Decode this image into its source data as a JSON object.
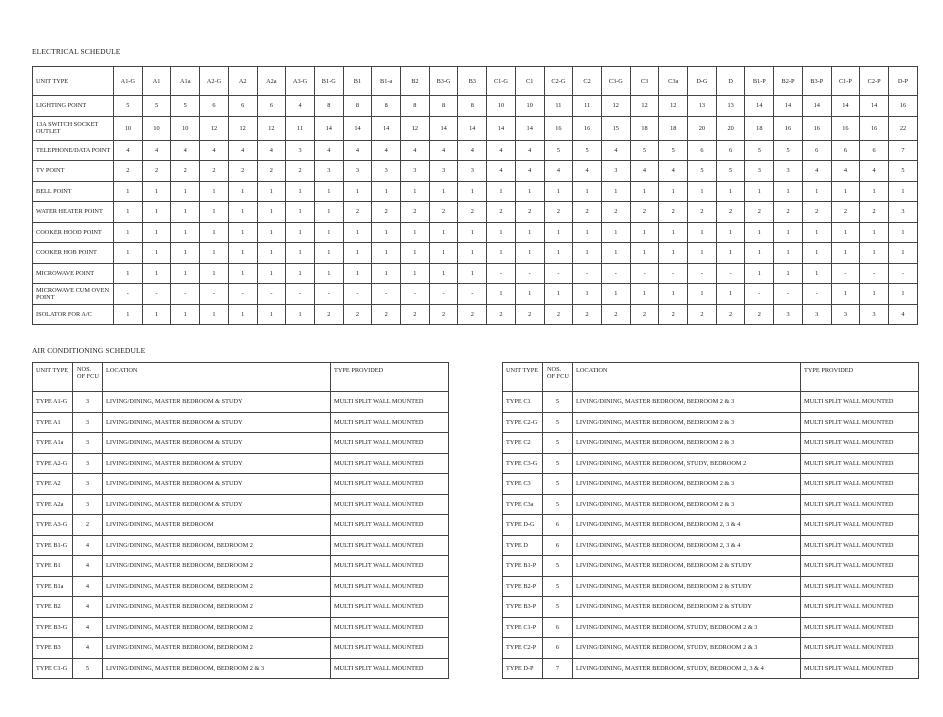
{
  "electrical": {
    "title": "ELECTRICAL SCHEDULE",
    "header_label": "UNIT TYPE",
    "columns": [
      "A1-G",
      "A1",
      "A1a",
      "A2-G",
      "A2",
      "A2a",
      "A3-G",
      "B1-G",
      "B1",
      "B1-a",
      "B2",
      "B3-G",
      "B3",
      "C1-G",
      "C1",
      "C2-G",
      "C2",
      "C3-G",
      "C3",
      "C3a",
      "D-G",
      "D",
      "B1-P",
      "B2-P",
      "B3-P",
      "C1-P",
      "C2-P",
      "D-P"
    ],
    "rows": [
      {
        "label": "LIGHTING POINT",
        "values": [
          "5",
          "5",
          "5",
          "6",
          "6",
          "6",
          "4",
          "8",
          "8",
          "8",
          "8",
          "8",
          "8",
          "10",
          "10",
          "11",
          "11",
          "12",
          "12",
          "12",
          "13",
          "13",
          "14",
          "14",
          "14",
          "14",
          "14",
          "16"
        ]
      },
      {
        "label": "13A SWITCH SOCKET OUTLET",
        "values": [
          "10",
          "10",
          "10",
          "12",
          "12",
          "12",
          "11",
          "14",
          "14",
          "14",
          "12",
          "14",
          "14",
          "14",
          "14",
          "16",
          "16",
          "15",
          "18",
          "18",
          "20",
          "20",
          "18",
          "16",
          "16",
          "16",
          "16",
          "22"
        ]
      },
      {
        "label": "TELEPHONE/DATA POINT",
        "values": [
          "4",
          "4",
          "4",
          "4",
          "4",
          "4",
          "3",
          "4",
          "4",
          "4",
          "4",
          "4",
          "4",
          "4",
          "4",
          "5",
          "5",
          "4",
          "5",
          "5",
          "6",
          "6",
          "5",
          "5",
          "6",
          "6",
          "6",
          "7"
        ]
      },
      {
        "label": "TV POINT",
        "values": [
          "2",
          "2",
          "2",
          "2",
          "2",
          "2",
          "2",
          "3",
          "3",
          "3",
          "3",
          "3",
          "3",
          "4",
          "4",
          "4",
          "4",
          "3",
          "4",
          "4",
          "5",
          "5",
          "3",
          "3",
          "4",
          "4",
          "4",
          "5"
        ]
      },
      {
        "label": "BELL POINT",
        "values": [
          "1",
          "1",
          "1",
          "1",
          "1",
          "1",
          "1",
          "1",
          "1",
          "1",
          "1",
          "1",
          "1",
          "1",
          "1",
          "1",
          "1",
          "1",
          "1",
          "1",
          "1",
          "1",
          "1",
          "1",
          "1",
          "1",
          "1",
          "1"
        ]
      },
      {
        "label": "WATER HEATER POINT",
        "values": [
          "1",
          "1",
          "1",
          "1",
          "1",
          "1",
          "1",
          "1",
          "2",
          "2",
          "2",
          "2",
          "2",
          "2",
          "2",
          "2",
          "2",
          "2",
          "2",
          "2",
          "2",
          "2",
          "2",
          "2",
          "2",
          "2",
          "2",
          "3"
        ]
      },
      {
        "label": "COOKER HOOD POINT",
        "values": [
          "1",
          "1",
          "1",
          "1",
          "1",
          "1",
          "1",
          "1",
          "1",
          "1",
          "1",
          "1",
          "1",
          "1",
          "1",
          "1",
          "1",
          "1",
          "1",
          "1",
          "1",
          "1",
          "1",
          "1",
          "1",
          "1",
          "1",
          "1"
        ]
      },
      {
        "label": "COOKER HOB POINT",
        "values": [
          "1",
          "1",
          "1",
          "1",
          "1",
          "1",
          "1",
          "1",
          "1",
          "1",
          "1",
          "1",
          "1",
          "1",
          "1",
          "1",
          "1",
          "1",
          "1",
          "1",
          "1",
          "1",
          "1",
          "1",
          "1",
          "1",
          "1",
          "1"
        ]
      },
      {
        "label": "MICROWAVE POINT",
        "values": [
          "1",
          "1",
          "1",
          "1",
          "1",
          "1",
          "1",
          "1",
          "1",
          "1",
          "1",
          "1",
          "1",
          "-",
          "-",
          "-",
          "-",
          "-",
          "-",
          "-",
          "-",
          "-",
          "1",
          "1",
          "1",
          "-",
          "-",
          "-"
        ]
      },
      {
        "label": "MICROWAVE CUM OVEN POINT",
        "values": [
          "-",
          "-",
          "-",
          "-",
          "-",
          "-",
          "-",
          "-",
          "-",
          "-",
          "-",
          "-",
          "-",
          "1",
          "1",
          "1",
          "1",
          "1",
          "1",
          "1",
          "1",
          "1",
          "-",
          "-",
          "-",
          "1",
          "1",
          "1"
        ]
      },
      {
        "label": "ISOLATOR FOR A/C",
        "values": [
          "1",
          "1",
          "1",
          "1",
          "1",
          "1",
          "1",
          "2",
          "2",
          "2",
          "2",
          "2",
          "2",
          "2",
          "2",
          "2",
          "2",
          "2",
          "2",
          "2",
          "2",
          "2",
          "2",
          "3",
          "3",
          "3",
          "3",
          "4"
        ]
      }
    ]
  },
  "air_conditioning": {
    "title": "AIR CONDITIONING SCHEDULE",
    "headers": [
      "UNIT TYPE",
      "NOS. OF FCU",
      "LOCATION",
      "TYPE PROVIDED"
    ],
    "left_rows": [
      [
        "TYPE A1-G",
        "3",
        "LIVING/DINING, MASTER BEDROOM & STUDY",
        "MULTI SPLIT WALL MOUNTED"
      ],
      [
        "TYPE A1",
        "3",
        "LIVING/DINING, MASTER BEDROOM & STUDY",
        "MULTI SPLIT WALL MOUNTED"
      ],
      [
        "TYPE A1a",
        "3",
        "LIVING/DINING, MASTER BEDROOM & STUDY",
        "MULTI SPLIT WALL MOUNTED"
      ],
      [
        "TYPE A2-G",
        "3",
        "LIVING/DINING, MASTER BEDROOM & STUDY",
        "MULTI SPLIT WALL MOUNTED"
      ],
      [
        "TYPE A2",
        "3",
        "LIVING/DINING, MASTER BEDROOM & STUDY",
        "MULTI SPLIT WALL MOUNTED"
      ],
      [
        "TYPE A2a",
        "3",
        "LIVING/DINING, MASTER BEDROOM & STUDY",
        "MULTI SPLIT WALL MOUNTED"
      ],
      [
        "TYPE A3-G",
        "2",
        "LIVING/DINING, MASTER BEDROOM",
        "MULTI SPLIT WALL MOUNTED"
      ],
      [
        "TYPE B1-G",
        "4",
        "LIVING/DINING, MASTER BEDROOM, BEDROOM 2",
        "MULTI SPLIT WALL MOUNTED"
      ],
      [
        "TYPE B1",
        "4",
        "LIVING/DINING, MASTER BEDROOM, BEDROOM 2",
        "MULTI SPLIT WALL MOUNTED"
      ],
      [
        "TYPE B1a",
        "4",
        "LIVING/DINING, MASTER BEDROOM, BEDROOM 2",
        "MULTI SPLIT WALL MOUNTED"
      ],
      [
        "TYPE B2",
        "4",
        "LIVING/DINING, MASTER BEDROOM, BEDROOM 2",
        "MULTI SPLIT WALL MOUNTED"
      ],
      [
        "TYPE B3-G",
        "4",
        "LIVING/DINING, MASTER BEDROOM, BEDROOM 2",
        "MULTI SPLIT WALL MOUNTED"
      ],
      [
        "TYPE B3",
        "4",
        "LIVING/DINING, MASTER BEDROOM, BEDROOM 2",
        "MULTI SPLIT WALL MOUNTED"
      ],
      [
        "TYPE C1-G",
        "5",
        "LIVING/DINING, MASTER BEDROOM, BEDROOM 2 & 3",
        "MULTI SPLIT WALL MOUNTED"
      ]
    ],
    "right_rows": [
      [
        "TYPE C1",
        "5",
        "LIVING/DINING, MASTER BEDROOM, BEDROOM 2 & 3",
        "MULTI SPLIT WALL MOUNTED"
      ],
      [
        "TYPE C2-G",
        "5",
        "LIVING/DINING, MASTER BEDROOM, BEDROOM 2 & 3",
        "MULTI SPLIT WALL MOUNTED"
      ],
      [
        "TYPE C2",
        "5",
        "LIVING/DINING, MASTER BEDROOM, BEDROOM 2 & 3",
        "MULTI SPLIT WALL MOUNTED"
      ],
      [
        "TYPE C3-G",
        "5",
        "LIVING/DINING, MASTER BEDROOM, STUDY, BEDROOM 2",
        "MULTI SPLIT WALL MOUNTED"
      ],
      [
        "TYPE C3",
        "5",
        "LIVING/DINING, MASTER BEDROOM, BEDROOM 2 & 3",
        "MULTI SPLIT WALL MOUNTED"
      ],
      [
        "TYPE C3a",
        "5",
        "LIVING/DINING, MASTER BEDROOM, BEDROOM 2 & 3",
        "MULTI SPLIT WALL MOUNTED"
      ],
      [
        "TYPE D-G",
        "6",
        "LIVING/DINING, MASTER BEDROOM, BEDROOM 2, 3 & 4",
        "MULTI SPLIT WALL MOUNTED"
      ],
      [
        "TYPE D",
        "6",
        "LIVING/DINING, MASTER BEDROOM, BEDROOM 2, 3 & 4",
        "MULTI SPLIT WALL MOUNTED"
      ],
      [
        "TYPE B1-P",
        "5",
        "LIVING/DINING, MASTER BEDROOM, BEDROOM 2 & STUDY",
        "MULTI SPLIT WALL MOUNTED"
      ],
      [
        "TYPE B2-P",
        "5",
        "LIVING/DINING, MASTER BEDROOM, BEDROOM 2 & STUDY",
        "MULTI SPLIT WALL MOUNTED"
      ],
      [
        "TYPE B3-P",
        "5",
        "LIVING/DINING, MASTER BEDROOM, BEDROOM 2 & STUDY",
        "MULTI SPLIT WALL MOUNTED"
      ],
      [
        "TYPE C1-P",
        "6",
        "LIVING/DINING, MASTER BEDROOM, STUDY, BEDROOM 2 & 3",
        "MULTI SPLIT WALL MOUNTED"
      ],
      [
        "TYPE C2-P",
        "6",
        "LIVING/DINING, MASTER BEDROOM, STUDY, BEDROOM 2 & 3",
        "MULTI SPLIT WALL MOUNTED"
      ],
      [
        "TYPE D-P",
        "7",
        "LIVING/DINING, MASTER BEDROOM, STUDY, BEDROOM 2, 3 & 4",
        "MULTI SPLIT WALL MOUNTED"
      ]
    ]
  }
}
